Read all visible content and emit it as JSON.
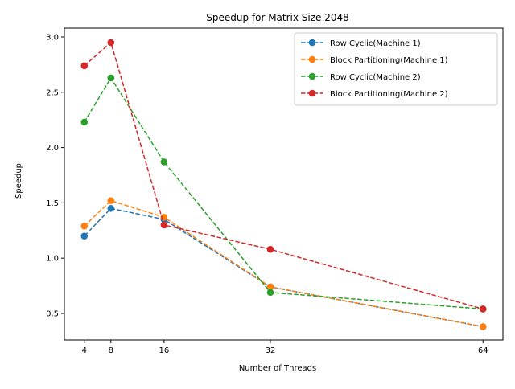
{
  "chart_data": {
    "type": "line",
    "title": "Speedup for Matrix Size 2048",
    "xlabel": "Number of Threads",
    "ylabel": "Speedup",
    "x": [
      4,
      8,
      16,
      32,
      64
    ],
    "xticks": [
      4,
      8,
      16,
      32,
      64
    ],
    "xlim": [
      1.0,
      67.0
    ],
    "yticks": [
      0.5,
      1.0,
      1.5,
      2.0,
      2.5,
      3.0
    ],
    "ylim": [
      0.26,
      3.08
    ],
    "grid": false,
    "legend_position": "top-right",
    "series": [
      {
        "name": "Row Cyclic(Machine 1)",
        "color": "#1f77b4",
        "values": [
          1.2,
          1.45,
          1.35,
          0.74,
          0.38
        ]
      },
      {
        "name": "Block Partitioning(Machine 1)",
        "color": "#ff7f0e",
        "values": [
          1.29,
          1.52,
          1.37,
          0.74,
          0.38
        ]
      },
      {
        "name": "Row Cyclic(Machine 2)",
        "color": "#2ca02c",
        "values": [
          2.23,
          2.63,
          1.87,
          0.69,
          0.54
        ]
      },
      {
        "name": "Block Partitioning(Machine 2)",
        "color": "#d62728",
        "values": [
          2.74,
          2.95,
          1.3,
          1.08,
          0.54
        ]
      }
    ]
  }
}
